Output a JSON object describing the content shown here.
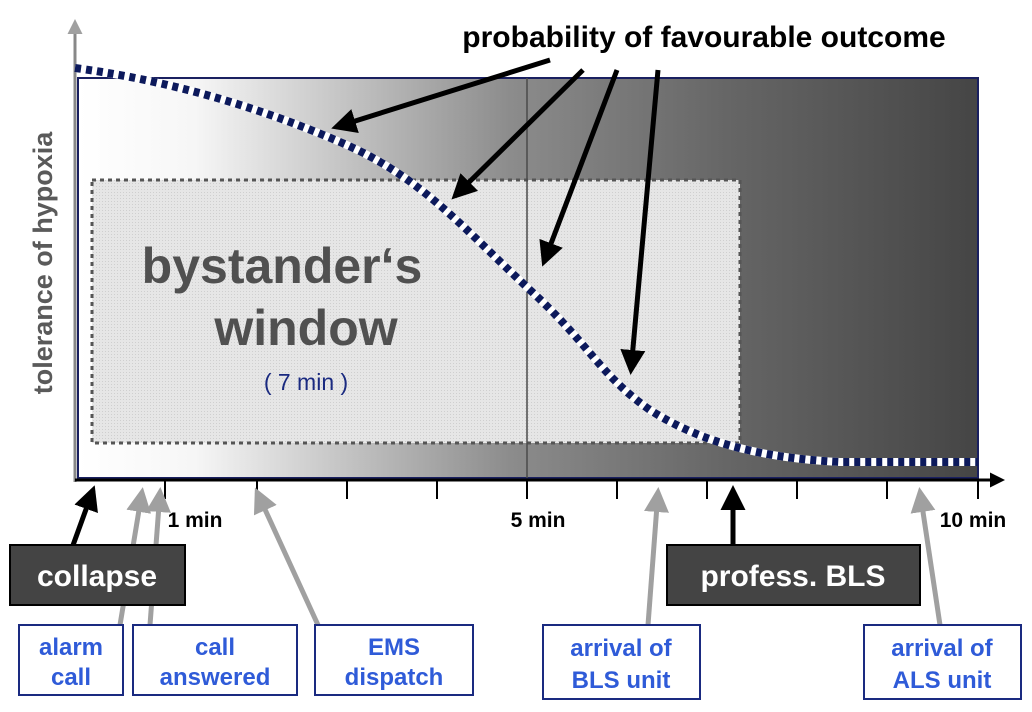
{
  "title": "probability of favourable outcome",
  "y_axis_label": "tolerance of hypoxia",
  "window": {
    "line1": "bystander‘s",
    "line2": "window",
    "duration": "( 7 min )"
  },
  "ticks": {
    "t1": "1 min",
    "t5": "5 min",
    "t10": "10 min"
  },
  "dark_labels": {
    "collapse": "collapse",
    "profess_bls": "profess. BLS"
  },
  "events": {
    "alarm_call": [
      "alarm",
      "call"
    ],
    "call_answered": [
      "call",
      "answered"
    ],
    "ems_dispatch": [
      "EMS",
      "dispatch"
    ],
    "arrival_bls": [
      "arrival of",
      "BLS unit"
    ],
    "arrival_als": [
      "arrival of",
      "ALS unit"
    ]
  },
  "colors": {
    "curve": "#0d1a5c",
    "event_text": "#2f5bd8",
    "event_border": "#1a2a80",
    "dark_box": "#444444",
    "gradient_dark": "#454545",
    "text_gray": "#555555"
  }
}
